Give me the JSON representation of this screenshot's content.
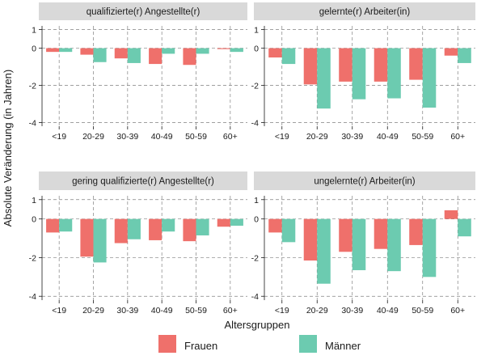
{
  "chart_data": {
    "type": "bar",
    "xlabel": "Altersgruppen",
    "ylabel": "Absolute Veränderung (in Jahren)",
    "categories": [
      "<19",
      "20-29",
      "30-39",
      "40-49",
      "50-59",
      "60+"
    ],
    "ylim": [
      -4.2,
      1.2
    ],
    "yticks": [
      1,
      0,
      -2,
      -4
    ],
    "grid": true,
    "legend": {
      "placement": "bottom",
      "entries": [
        {
          "name": "Frauen",
          "color": "#ef706b"
        },
        {
          "name": "Männer",
          "color": "#6ccbb0"
        }
      ]
    },
    "colors": {
      "Frauen": "#ef706b",
      "Männer": "#6ccbb0",
      "strip": "#d9d9d9",
      "grid": "#808080"
    },
    "panels": [
      {
        "title": "qualifizierte(r) Angestellte(r)",
        "series": [
          {
            "name": "Frauen",
            "values": [
              -0.2,
              -0.35,
              -0.55,
              -0.85,
              -0.9,
              -0.05
            ]
          },
          {
            "name": "Männer",
            "values": [
              -0.2,
              -0.75,
              -0.8,
              -0.3,
              -0.3,
              -0.2
            ]
          }
        ]
      },
      {
        "title": "gelernte(r) Arbeiter(in)",
        "series": [
          {
            "name": "Frauen",
            "values": [
              -0.5,
              -1.95,
              -1.8,
              -1.8,
              -1.7,
              -0.4
            ]
          },
          {
            "name": "Männer",
            "values": [
              -0.85,
              -3.25,
              -2.75,
              -2.7,
              -3.2,
              -0.8
            ]
          }
        ]
      },
      {
        "title": "gering qualifizierte(r) Angestellte(r)",
        "series": [
          {
            "name": "Frauen",
            "values": [
              -0.7,
              -1.95,
              -1.25,
              -1.1,
              -1.15,
              -0.4
            ]
          },
          {
            "name": "Männer",
            "values": [
              -0.65,
              -2.25,
              -1.05,
              -0.65,
              -0.85,
              -0.35
            ]
          }
        ]
      },
      {
        "title": "ungelernte(r) Arbeiter(in)",
        "series": [
          {
            "name": "Frauen",
            "values": [
              -0.7,
              -2.15,
              -1.7,
              -1.55,
              -1.35,
              0.45
            ]
          },
          {
            "name": "Männer",
            "values": [
              -1.2,
              -3.35,
              -2.65,
              -2.7,
              -3.0,
              -0.9
            ]
          }
        ]
      }
    ]
  }
}
